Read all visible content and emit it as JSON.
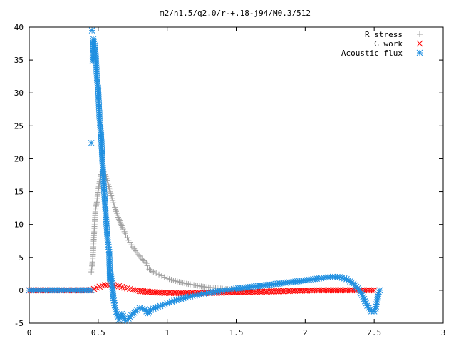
{
  "chart_data": {
    "type": "scatter",
    "title": "m2/n1.5/q2.0/r-+.18-j94/M0.3/512",
    "xlabel": "",
    "ylabel": "",
    "xlim": [
      0,
      3
    ],
    "ylim": [
      -5,
      40
    ],
    "xticks": [
      {
        "value": 0,
        "label": "0"
      },
      {
        "value": 0.5,
        "label": "0.5"
      },
      {
        "value": 1,
        "label": "1"
      },
      {
        "value": 1.5,
        "label": "1.5"
      },
      {
        "value": 2,
        "label": "2"
      },
      {
        "value": 2.5,
        "label": "2.5"
      },
      {
        "value": 3,
        "label": "3"
      }
    ],
    "yticks": [
      {
        "value": -5,
        "label": "-5"
      },
      {
        "value": 0,
        "label": "0"
      },
      {
        "value": 5,
        "label": "5"
      },
      {
        "value": 10,
        "label": "10"
      },
      {
        "value": 15,
        "label": "15"
      },
      {
        "value": 20,
        "label": "20"
      },
      {
        "value": 25,
        "label": "25"
      },
      {
        "value": 30,
        "label": "30"
      },
      {
        "value": 35,
        "label": "35"
      },
      {
        "value": 40,
        "label": "40"
      }
    ],
    "grid": false,
    "legend_position": "top-right",
    "series": [
      {
        "name": "R stress",
        "marker": "plus",
        "color": "#a0a0a0",
        "points": [
          [
            0.45,
            2.8
          ],
          [
            0.46,
            4.6
          ],
          [
            0.465,
            6.6
          ],
          [
            0.47,
            8.6
          ],
          [
            0.475,
            10.5
          ],
          [
            0.48,
            12.2
          ],
          [
            0.49,
            13.4
          ],
          [
            0.5,
            15.2
          ],
          [
            0.51,
            16.5
          ],
          [
            0.52,
            17.6
          ],
          [
            0.53,
            18.0
          ],
          [
            0.54,
            18.0
          ],
          [
            0.55,
            17.6
          ],
          [
            0.56,
            17.0
          ],
          [
            0.57,
            16.3
          ],
          [
            0.58,
            15.5
          ],
          [
            0.59,
            14.7
          ],
          [
            0.6,
            14.0
          ],
          [
            0.61,
            13.3
          ],
          [
            0.62,
            12.6
          ],
          [
            0.63,
            12.0
          ],
          [
            0.64,
            11.4
          ],
          [
            0.65,
            10.8
          ],
          [
            0.66,
            10.3
          ],
          [
            0.67,
            9.8
          ],
          [
            0.68,
            9.3
          ],
          [
            0.69,
            8.9
          ],
          [
            0.7,
            8.4
          ],
          [
            0.71,
            8.0
          ],
          [
            0.72,
            7.6
          ],
          [
            0.73,
            7.3
          ],
          [
            0.74,
            6.9
          ],
          [
            0.75,
            6.6
          ],
          [
            0.76,
            6.3
          ],
          [
            0.77,
            6.0
          ],
          [
            0.78,
            5.7
          ],
          [
            0.79,
            5.4
          ],
          [
            0.8,
            5.2
          ],
          [
            0.81,
            4.9
          ],
          [
            0.82,
            4.7
          ],
          [
            0.83,
            4.5
          ],
          [
            0.84,
            4.3
          ],
          [
            0.85,
            4.1
          ],
          [
            0.86,
            3.4
          ],
          [
            0.87,
            3.2
          ],
          [
            0.88,
            3.1
          ],
          [
            0.89,
            2.9
          ],
          [
            0.9,
            2.8
          ],
          [
            0.92,
            2.6
          ],
          [
            0.94,
            2.4
          ],
          [
            0.96,
            2.2
          ],
          [
            0.98,
            2.0
          ],
          [
            1.0,
            1.8
          ],
          [
            1.03,
            1.6
          ],
          [
            1.06,
            1.4
          ],
          [
            1.1,
            1.2
          ],
          [
            1.14,
            1.0
          ],
          [
            1.18,
            0.85
          ],
          [
            1.22,
            0.7
          ],
          [
            1.26,
            0.55
          ],
          [
            1.3,
            0.45
          ],
          [
            1.35,
            0.35
          ],
          [
            1.4,
            0.25
          ],
          [
            1.45,
            0.15
          ],
          [
            1.5,
            0.1
          ],
          [
            1.55,
            0.05
          ],
          [
            1.6,
            0.02
          ]
        ]
      },
      {
        "name": "G work",
        "marker": "cross",
        "color": "#ff0000",
        "points": [
          [
            0.0,
            0.0
          ],
          [
            0.4,
            0.0
          ],
          [
            0.45,
            0.05
          ],
          [
            0.47,
            0.2
          ],
          [
            0.49,
            0.4
          ],
          [
            0.51,
            0.55
          ],
          [
            0.53,
            0.7
          ],
          [
            0.55,
            0.8
          ],
          [
            0.57,
            0.85
          ],
          [
            0.59,
            0.85
          ],
          [
            0.61,
            0.8
          ],
          [
            0.63,
            0.72
          ],
          [
            0.65,
            0.62
          ],
          [
            0.67,
            0.5
          ],
          [
            0.69,
            0.4
          ],
          [
            0.71,
            0.3
          ],
          [
            0.73,
            0.2
          ],
          [
            0.75,
            0.1
          ],
          [
            0.77,
            0.0
          ],
          [
            0.8,
            -0.1
          ],
          [
            0.85,
            -0.2
          ],
          [
            0.9,
            -0.3
          ],
          [
            0.95,
            -0.35
          ],
          [
            1.0,
            -0.4
          ],
          [
            1.1,
            -0.45
          ],
          [
            1.2,
            -0.45
          ],
          [
            1.3,
            -0.4
          ],
          [
            1.4,
            -0.35
          ],
          [
            1.5,
            -0.3
          ],
          [
            1.6,
            -0.25
          ],
          [
            1.7,
            -0.2
          ],
          [
            1.8,
            -0.15
          ],
          [
            1.9,
            -0.1
          ],
          [
            2.0,
            -0.05
          ],
          [
            2.1,
            0.0
          ],
          [
            2.2,
            0.0
          ],
          [
            2.3,
            0.0
          ],
          [
            2.4,
            0.0
          ],
          [
            2.5,
            0.0
          ]
        ]
      },
      {
        "name": "Acoustic flux",
        "marker": "star",
        "color": "#1f8fe0",
        "points": [
          [
            0.0,
            0.0
          ],
          [
            0.05,
            0.0
          ],
          [
            0.1,
            0.0
          ],
          [
            0.15,
            0.0
          ],
          [
            0.2,
            0.0
          ],
          [
            0.25,
            0.0
          ],
          [
            0.3,
            0.0
          ],
          [
            0.35,
            0.0
          ],
          [
            0.4,
            0.0
          ],
          [
            0.45,
            0.0
          ],
          [
            0.45,
            22.4
          ],
          [
            0.455,
            39.5
          ],
          [
            0.46,
            34.8
          ],
          [
            0.465,
            38.2
          ],
          [
            0.47,
            37.8
          ],
          [
            0.48,
            36.3
          ],
          [
            0.485,
            34.5
          ],
          [
            0.49,
            32.6
          ],
          [
            0.5,
            30.5
          ],
          [
            0.505,
            28.2
          ],
          [
            0.51,
            26.1
          ],
          [
            0.52,
            23.9
          ],
          [
            0.525,
            21.9
          ],
          [
            0.53,
            19.9
          ],
          [
            0.535,
            18.0
          ],
          [
            0.54,
            16.2
          ],
          [
            0.545,
            14.5
          ],
          [
            0.55,
            13.0
          ],
          [
            0.555,
            11.4
          ],
          [
            0.56,
            10.1
          ],
          [
            0.565,
            8.6
          ],
          [
            0.57,
            7.3
          ],
          [
            0.575,
            6.6
          ],
          [
            0.58,
            5.8
          ],
          [
            0.585,
            1.5
          ],
          [
            0.59,
            2.4
          ],
          [
            0.6,
            1.1
          ],
          [
            0.61,
            -1.2
          ],
          [
            0.62,
            -2.3
          ],
          [
            0.63,
            -3.3
          ],
          [
            0.64,
            -4.1
          ],
          [
            0.65,
            -4.5
          ],
          [
            0.66,
            -4.2
          ],
          [
            0.67,
            -3.6
          ],
          [
            0.68,
            -3.9
          ],
          [
            0.69,
            -4.3
          ],
          [
            0.7,
            -4.6
          ],
          [
            0.72,
            -4.3
          ],
          [
            0.74,
            -3.8
          ],
          [
            0.76,
            -3.4
          ],
          [
            0.78,
            -3.0
          ],
          [
            0.8,
            -2.7
          ],
          [
            0.82,
            -2.8
          ],
          [
            0.84,
            -2.9
          ],
          [
            0.86,
            -3.5
          ],
          [
            0.88,
            -3.0
          ],
          [
            0.9,
            -2.8
          ],
          [
            0.95,
            -2.4
          ],
          [
            1.0,
            -2.0
          ],
          [
            1.05,
            -1.6
          ],
          [
            1.1,
            -1.3
          ],
          [
            1.15,
            -1.0
          ],
          [
            1.2,
            -0.8
          ],
          [
            1.25,
            -0.6
          ],
          [
            1.3,
            -0.4
          ],
          [
            1.35,
            -0.2
          ],
          [
            1.4,
            -0.05
          ],
          [
            1.45,
            0.1
          ],
          [
            1.5,
            0.25
          ],
          [
            1.6,
            0.5
          ],
          [
            1.7,
            0.75
          ],
          [
            1.8,
            1.0
          ],
          [
            1.9,
            1.25
          ],
          [
            2.0,
            1.5
          ],
          [
            2.1,
            1.8
          ],
          [
            2.15,
            1.95
          ],
          [
            2.2,
            2.05
          ],
          [
            2.25,
            2.0
          ],
          [
            2.3,
            1.7
          ],
          [
            2.35,
            1.0
          ],
          [
            2.4,
            -0.2
          ],
          [
            2.42,
            -1.0
          ],
          [
            2.44,
            -2.0
          ],
          [
            2.46,
            -2.7
          ],
          [
            2.48,
            -3.2
          ],
          [
            2.5,
            -3.2
          ],
          [
            2.51,
            -2.8
          ],
          [
            2.52,
            -1.8
          ],
          [
            2.53,
            -0.6
          ],
          [
            2.54,
            0.0
          ]
        ]
      }
    ]
  }
}
